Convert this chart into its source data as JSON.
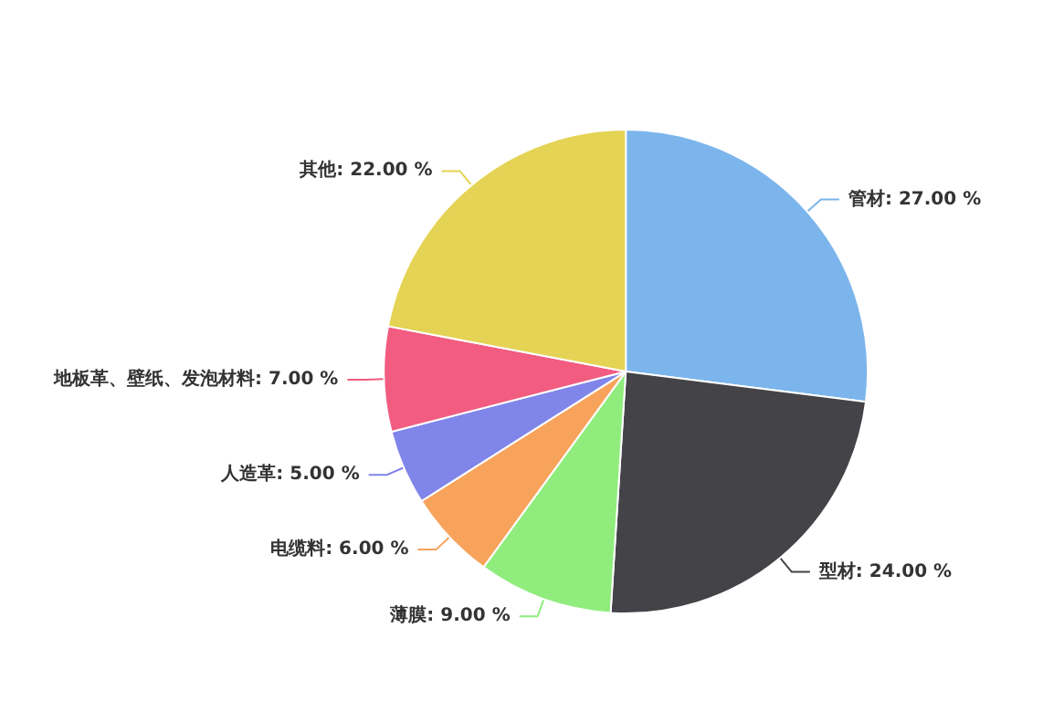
{
  "chart_data": {
    "type": "pie",
    "categories": [
      "管材",
      "型材",
      "薄膜",
      "电缆料",
      "人造革",
      "地板革、壁纸、发泡材料",
      "其他"
    ],
    "values": [
      27,
      24,
      9,
      6,
      5,
      7,
      22
    ],
    "colors": [
      "#7cb5ec",
      "#434348",
      "#90ed7d",
      "#f7a35c",
      "#8085e9",
      "#f15c80",
      "#e4d354"
    ],
    "value_labels": [
      "27.00 %",
      "24.00 %",
      "9.00 %",
      "6.00 %",
      "5.00 %",
      "7.00 %",
      "22.00 %"
    ],
    "legend": false
  }
}
